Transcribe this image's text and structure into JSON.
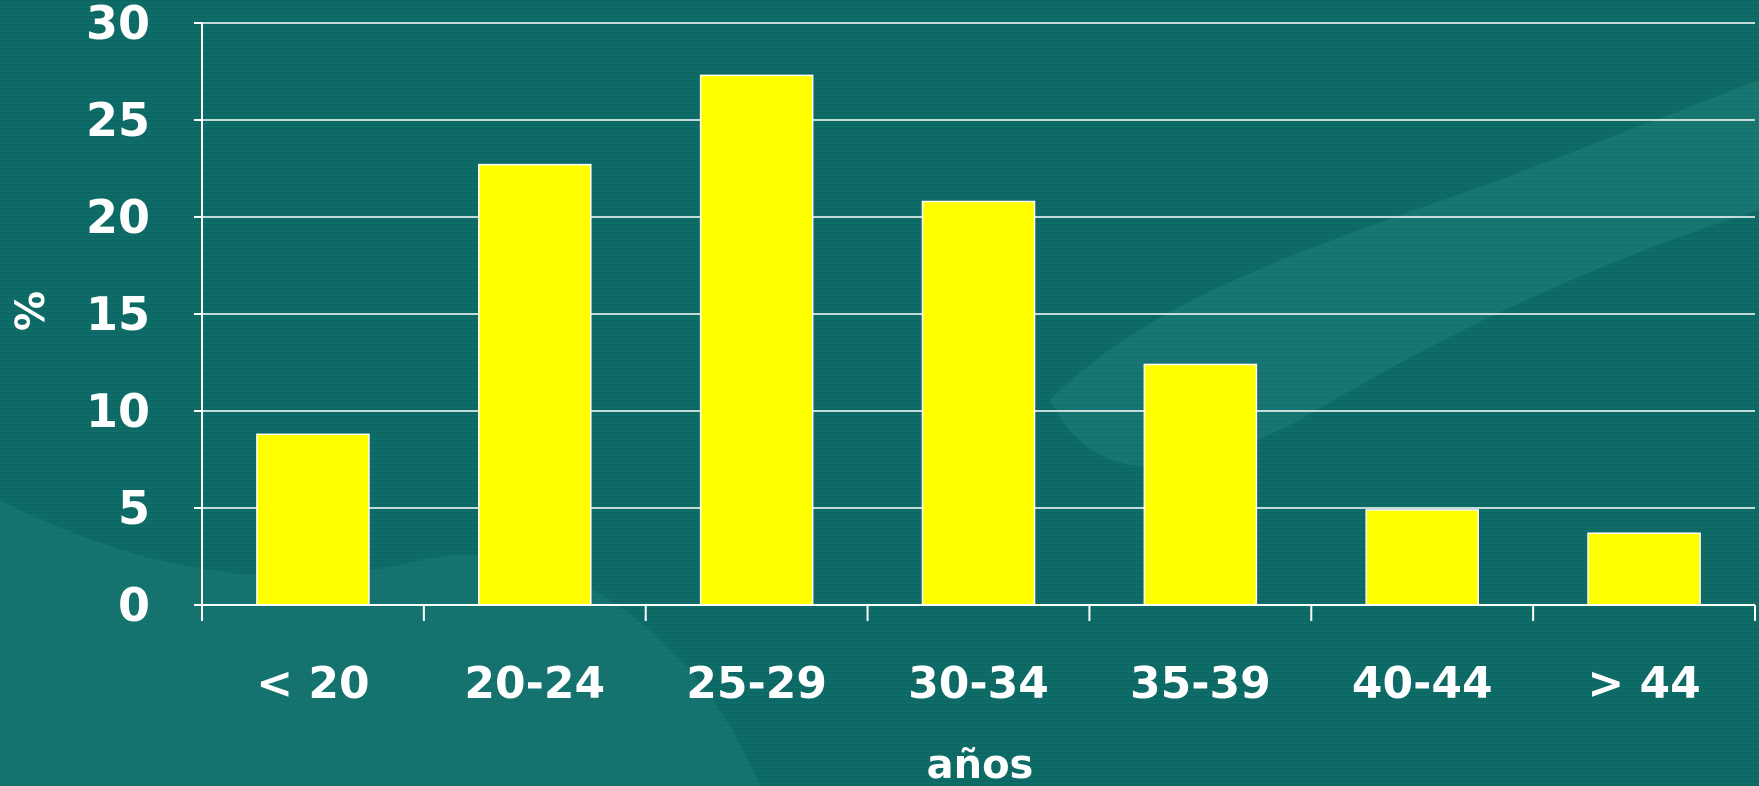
{
  "chart_data": {
    "type": "bar",
    "categories": [
      "< 20",
      "20-24",
      "25-29",
      "30-34",
      "35-39",
      "40-44",
      "> 44"
    ],
    "values": [
      8.8,
      22.7,
      27.3,
      20.8,
      12.4,
      4.9,
      3.7
    ],
    "title": "",
    "xlabel": "años",
    "ylabel": "%",
    "ylim": [
      0,
      30
    ],
    "yticks": [
      0,
      5,
      10,
      15,
      20,
      25,
      30
    ],
    "grid": true,
    "legend": "none",
    "colors": {
      "bar": "#ffff00",
      "background": "#0e6d68",
      "text": "#ffffff",
      "gridline": "#ffffff"
    }
  }
}
